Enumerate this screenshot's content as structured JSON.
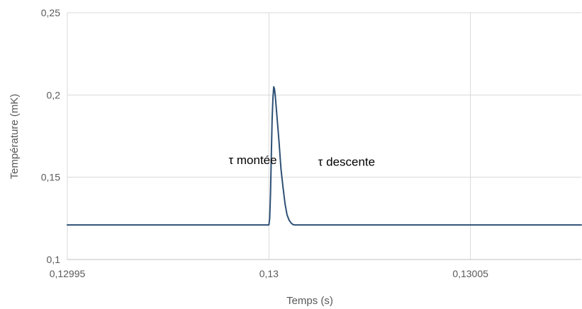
{
  "chart_data": {
    "type": "line",
    "title": "",
    "xlabel": "Temps (s)",
    "ylabel": "Température (mK)",
    "xlim": [
      0.12995,
      0.1300775
    ],
    "ylim": [
      0.1,
      0.25
    ],
    "x_ticks": [
      {
        "value": 0.12995,
        "label": "0,12995"
      },
      {
        "value": 0.13,
        "label": "0,13"
      },
      {
        "value": 0.13005,
        "label": "0,13005"
      }
    ],
    "y_ticks": [
      {
        "value": 0.1,
        "label": "0,1"
      },
      {
        "value": 0.15,
        "label": "0,15"
      },
      {
        "value": 0.2,
        "label": "0,2"
      },
      {
        "value": 0.25,
        "label": "0,25"
      }
    ],
    "grid": {
      "vertical": true,
      "horizontal": true
    },
    "legend": "none",
    "series": [
      {
        "color": "#2e5075",
        "x": [
          0.12995,
          0.13,
          0.1300002,
          0.1300004,
          0.1300006,
          0.1300008,
          0.130001,
          0.1300012,
          0.1300014,
          0.1300016,
          0.1300018,
          0.130002,
          0.1300025,
          0.130003,
          0.1300035,
          0.130004,
          0.1300045,
          0.130005,
          0.1300055,
          0.130006,
          0.1300065,
          0.130007,
          0.1300775
        ],
        "y": [
          0.121,
          0.121,
          0.125,
          0.14,
          0.163,
          0.185,
          0.198,
          0.205,
          0.2035,
          0.199,
          0.193,
          0.187,
          0.172,
          0.155,
          0.144,
          0.134,
          0.1272,
          0.124,
          0.1222,
          0.1212,
          0.121,
          0.121,
          0.121
        ]
      }
    ],
    "annotations": [
      {
        "text": "τ montée",
        "x": 0.12999,
        "y": 0.158
      },
      {
        "text": "τ descente",
        "x": 0.1300122,
        "y": 0.157
      }
    ]
  }
}
